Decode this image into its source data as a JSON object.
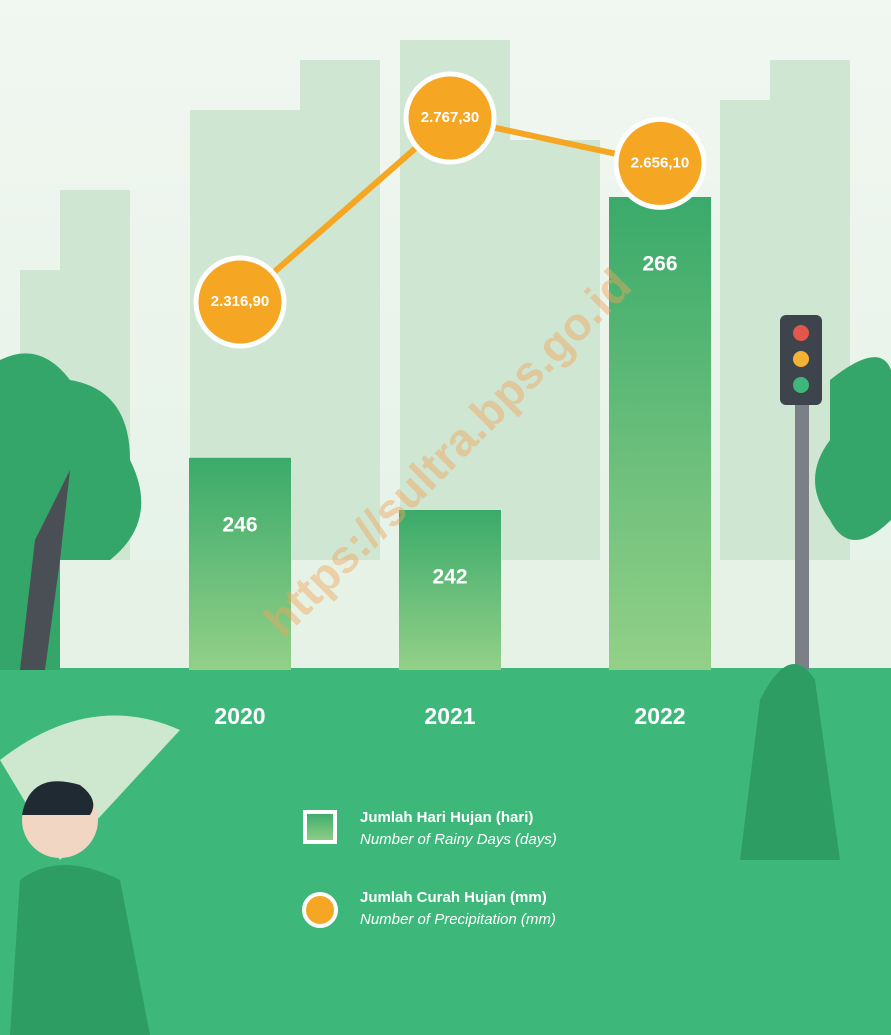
{
  "chart_data": {
    "type": "bar_line",
    "categories": [
      "2020",
      "2021",
      "2022"
    ],
    "series": [
      {
        "name": "Jumlah Hari Hujan (hari)",
        "translation": "Number of Rainy Days (days)",
        "type": "bar",
        "color": "#3aaa6a",
        "values": [
          246,
          242,
          266
        ]
      },
      {
        "name": "Jumlah Curah Hujan (mm)",
        "translation": "Number of Precipitation (mm)",
        "type": "line",
        "color": "#f5a623",
        "values": [
          2316.9,
          2767.3,
          2656.1
        ],
        "value_labels": [
          "2.316,90",
          "2.767,30",
          "2.656,10"
        ]
      }
    ],
    "watermark": "https://sultra.bps.go.id"
  }
}
